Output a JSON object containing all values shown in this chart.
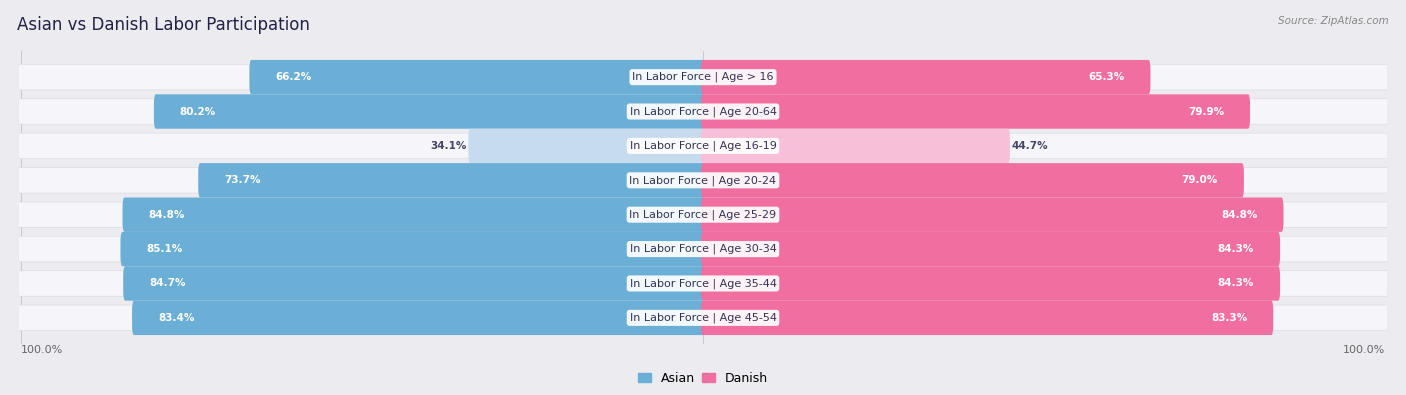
{
  "title": "Asian vs Danish Labor Participation",
  "source": "Source: ZipAtlas.com",
  "categories": [
    "In Labor Force | Age > 16",
    "In Labor Force | Age 20-64",
    "In Labor Force | Age 16-19",
    "In Labor Force | Age 20-24",
    "In Labor Force | Age 25-29",
    "In Labor Force | Age 30-34",
    "In Labor Force | Age 35-44",
    "In Labor Force | Age 45-54"
  ],
  "asian_values": [
    66.2,
    80.2,
    34.1,
    73.7,
    84.8,
    85.1,
    84.7,
    83.4
  ],
  "danish_values": [
    65.3,
    79.9,
    44.7,
    79.0,
    84.8,
    84.3,
    84.3,
    83.3
  ],
  "asian_color": "#6BAED6",
  "asian_color_light": "#C6DCEE",
  "danish_color": "#F06FA0",
  "danish_color_light": "#F8C0D8",
  "bg_color": "#EBEBF0",
  "row_bg_color": "#F5F5FA",
  "row_shadow_color": "#DCDCE4",
  "max_value": 100.0,
  "title_fontsize": 12,
  "label_fontsize": 8,
  "value_fontsize": 7.5,
  "legend_fontsize": 9,
  "axis_label_fontsize": 8
}
